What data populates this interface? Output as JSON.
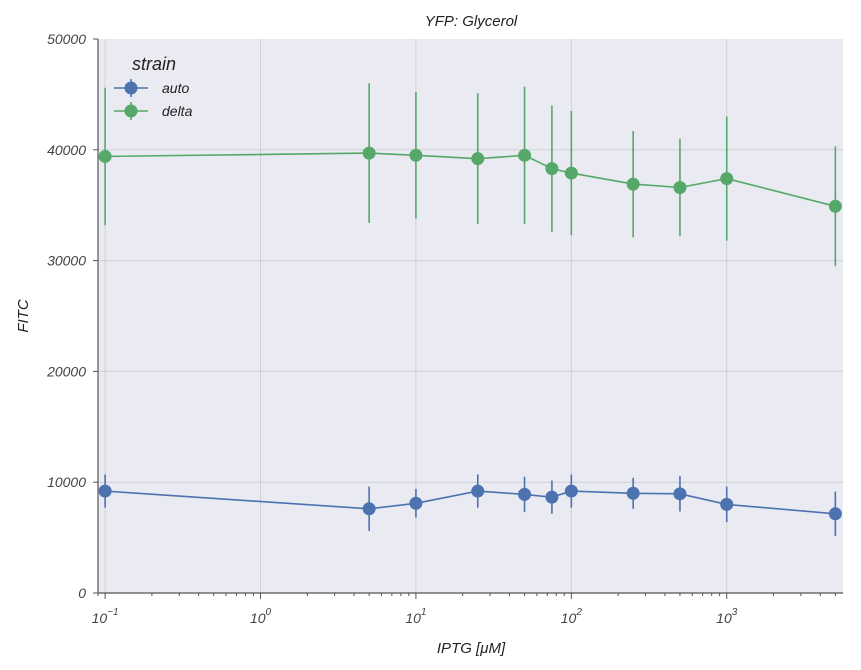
{
  "chart_data": {
    "type": "line",
    "title": "YFP: Glycerol",
    "xlabel": "IPTG [μM]",
    "ylabel": "FITC",
    "xscale": "log",
    "xlim": [
      0.09,
      5600
    ],
    "ylim": [
      0,
      50000
    ],
    "yticks": [
      "0",
      "10000",
      "20000",
      "30000",
      "40000",
      "50000"
    ],
    "xticks": [
      {
        "base": "10",
        "exp": "−1",
        "value": 0.1
      },
      {
        "base": "10",
        "exp": "0",
        "value": 1
      },
      {
        "base": "10",
        "exp": "1",
        "value": 10
      },
      {
        "base": "10",
        "exp": "2",
        "value": 100
      },
      {
        "base": "10",
        "exp": "3",
        "value": 1000
      }
    ],
    "grid": true,
    "legend": {
      "title": "strain",
      "placement": "top-left"
    },
    "series": [
      {
        "name": "auto",
        "color": "#4c72b0",
        "x": [
          0.1,
          5,
          10,
          25,
          50,
          75,
          100,
          250,
          500,
          1000,
          5000
        ],
        "y": [
          9200,
          7600,
          8100,
          9200,
          8900,
          8650,
          9200,
          9000,
          8950,
          8000,
          7150
        ],
        "err": [
          1500,
          2000,
          1300,
          1500,
          1600,
          1500,
          1500,
          1400,
          1600,
          1600,
          2000
        ]
      },
      {
        "name": "delta",
        "color": "#55a868",
        "x": [
          0.1,
          5,
          10,
          25,
          50,
          75,
          100,
          250,
          500,
          1000,
          5000
        ],
        "y": [
          39400,
          39700,
          39500,
          39200,
          39500,
          38300,
          37900,
          36900,
          36600,
          37400,
          34900
        ],
        "err": [
          6200,
          6300,
          5700,
          5900,
          6200,
          5700,
          5600,
          4800,
          4400,
          5600,
          5400
        ]
      }
    ]
  }
}
